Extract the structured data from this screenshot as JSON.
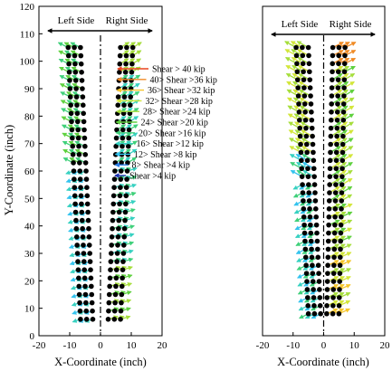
{
  "chart_data": [
    {
      "type": "quiver",
      "xlabel": "X-Coordinate (inch)",
      "ylabel": "Y-Coordinate (inch)",
      "xlim": [
        -20,
        20
      ],
      "ylim": [
        0,
        120
      ],
      "xticks": [
        -20,
        -10,
        0,
        10,
        20
      ],
      "yticks": [
        0,
        10,
        20,
        30,
        40,
        50,
        60,
        70,
        80,
        90,
        100,
        110,
        120
      ],
      "side_labels": {
        "left": "Left Side",
        "right": "Right Side"
      },
      "centerline_x": 0,
      "fastener_grid": {
        "y_start": 6,
        "y_end": 105,
        "rows": 34,
        "columns_bottom": [
          -6.5,
          -4.5,
          -2.5,
          2.5,
          4.5,
          6.5
        ],
        "columns_top": [
          -10.5,
          -8.5,
          -6.5,
          6.5,
          8.5,
          10.5
        ]
      },
      "grid": false,
      "legend_position": "right",
      "legend": [
        {
          "label": "Shear > 40 kip",
          "color": "#e8431e"
        },
        {
          "label": "40> Shear >36 kip",
          "color": "#f08a24"
        },
        {
          "label": "36> Shear >32 kip",
          "color": "#f6c62c"
        },
        {
          "label": "32> Shear >28 kip",
          "color": "#d3e63a"
        },
        {
          "label": "28> Shear >24 kip",
          "color": "#a6de3c"
        },
        {
          "label": "24> Shear >20 kip",
          "color": "#5fd13f"
        },
        {
          "label": "20> Shear >16 kip",
          "color": "#3fd07a"
        },
        {
          "label": "16> Shear >12 kip",
          "color": "#37d1c1"
        },
        {
          "label": "12> Shear >8 kip",
          "color": "#33c3ee"
        },
        {
          "label": "8> Shear >4 kip",
          "color": "#2a7fe8"
        },
        {
          "label": "Shear >4 kip",
          "color": "#1a2fb0"
        }
      ]
    },
    {
      "type": "quiver",
      "xlabel": "X-Coordinate (inch)",
      "ylabel": "",
      "xlim": [
        -20,
        20
      ],
      "ylim": [
        0,
        120
      ],
      "xticks": [
        -20,
        -10,
        0,
        10,
        20
      ],
      "side_labels": {
        "left": "Left Side",
        "right": "Right Side"
      },
      "centerline_x": 0,
      "fastener_grid": {
        "y_start": 8,
        "y_end": 105,
        "rows": 34,
        "columns_bottom": [
          -5,
          -3,
          -1,
          1,
          3,
          5
        ],
        "columns_top": [
          -9,
          -7,
          -5,
          3,
          5,
          7
        ]
      },
      "grid": false
    }
  ]
}
